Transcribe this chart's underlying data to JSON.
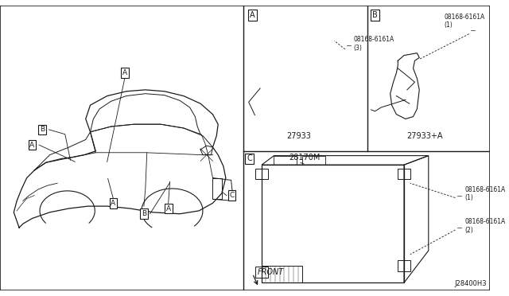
{
  "bg_color": "#ffffff",
  "line_color": "#1a1a1a",
  "diagram_number": "J28400H3",
  "parts": {
    "part_A_number": "27933",
    "part_B_number": "27933+A",
    "part_C_number": "28170M",
    "screw_A": "08168-6161A\n(3)",
    "screw_B": "08168-6161A\n(1)",
    "screw_C1": "08168-6161A\n(1)",
    "screw_C2": "08168-6161A\n(2)",
    "front_label": "FRONT"
  }
}
